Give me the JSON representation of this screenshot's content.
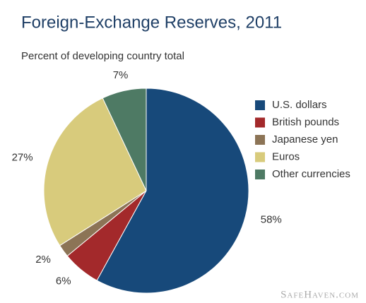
{
  "chart_data": {
    "type": "pie",
    "title": "Foreign-Exchange Reserves, 2011",
    "subtitle": "Percent of developing country total",
    "categories": [
      "U.S. dollars",
      "British pounds",
      "Japanese yen",
      "Euros",
      "Other currencies"
    ],
    "values": [
      58,
      6,
      2,
      27,
      7
    ],
    "value_labels": [
      "58%",
      "6%",
      "2%",
      "27%",
      "7%"
    ],
    "colors": [
      "#17497a",
      "#a3292b",
      "#8c7456",
      "#d8cb7c",
      "#4e7a64"
    ],
    "legend": "right",
    "watermark": "SafeHaven.com"
  }
}
